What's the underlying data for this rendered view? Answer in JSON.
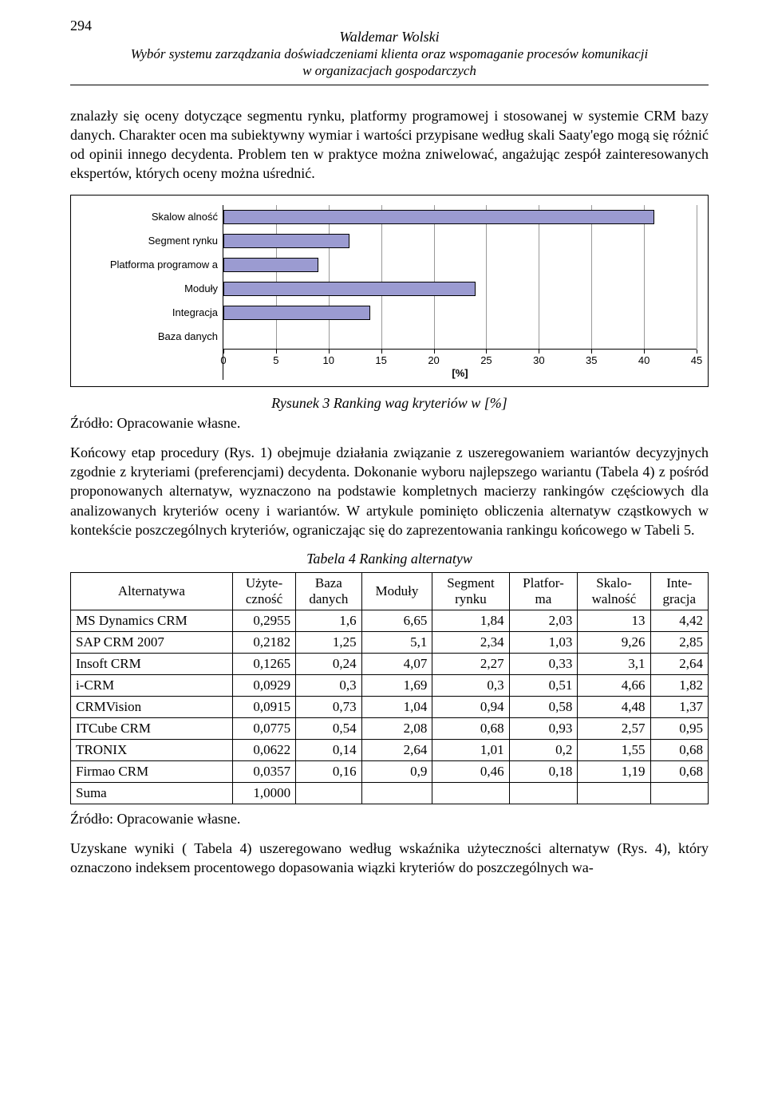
{
  "page_number": "294",
  "header": {
    "author": "Waldemar Wolski",
    "title_line1": "Wybór systemu zarządzania doświadczeniami klienta oraz wspomaganie procesów komunikacji",
    "title_line2": "w organizacjach gospodarczych"
  },
  "paragraph1": "znalazły się oceny dotyczące segmentu rynku, platformy programowej i stosowanej w systemie CRM bazy danych. Charakter ocen ma subiektywny wymiar i wartości przypisane według skali Saaty'ego mogą się różnić od opinii innego decydenta. Problem ten w praktyce można zniwelować, angażując zespół zainteresowanych ekspertów, których oceny można uśrednić.",
  "chart": {
    "type": "bar-horizontal",
    "categories": [
      "Skalow alność",
      "Segment rynku",
      "Platforma programow a",
      "Moduły",
      "Integracja",
      "Baza danych"
    ],
    "approx_values": [
      41,
      12,
      9,
      24,
      14,
      0
    ],
    "x_min": 0,
    "x_max": 45,
    "x_step": 5,
    "x_ticks": [
      0,
      5,
      10,
      15,
      20,
      25,
      30,
      35,
      40,
      45
    ],
    "x_unit": "[%]",
    "bar_fill": "#9b9bd1",
    "bar_border": "#000000",
    "grid_color": "#999999",
    "label_fontsize": 13,
    "label_font": "Arial"
  },
  "fig_caption": "Rysunek 3 Ranking wag kryteriów w [%]",
  "source_label": "Źródło: Opracowanie własne.",
  "paragraph2": "Końcowy etap procedury (Rys. 1) obejmuje działania związanie z uszeregowaniem wariantów decyzyjnych zgodnie z kryteriami (preferencjami) decydenta. Dokonanie wyboru najlepszego wariantu (Tabela 4) z pośród proponowanych alternatyw, wyznaczono na podstawie kompletnych macierzy rankingów częściowych dla analizowanych kryteriów oceny i wariantów. W artykule pominięto obliczenia alternatyw cząstkowych w kontekście poszczególnych kryteriów, ograniczając się do zaprezentowania rankingu końcowego w Tabeli 5.",
  "table_caption": "Tabela 4 Ranking alternatyw",
  "table": {
    "columns": [
      "Alternatywa",
      "Użyte-\nczność",
      "Baza\ndanych",
      "Moduły",
      "Segment\nrynku",
      "Platfor-\nma",
      "Skalo-\nwalność",
      "Inte-\ngracja"
    ],
    "rows": [
      [
        "MS Dynamics CRM",
        "0,2955",
        "1,6",
        "6,65",
        "1,84",
        "2,03",
        "13",
        "4,42"
      ],
      [
        "SAP CRM 2007",
        "0,2182",
        "1,25",
        "5,1",
        "2,34",
        "1,03",
        "9,26",
        "2,85"
      ],
      [
        "Insoft CRM",
        "0,1265",
        "0,24",
        "4,07",
        "2,27",
        "0,33",
        "3,1",
        "2,64"
      ],
      [
        "i-CRM",
        "0,0929",
        "0,3",
        "1,69",
        "0,3",
        "0,51",
        "4,66",
        "1,82"
      ],
      [
        "CRMVision",
        "0,0915",
        "0,73",
        "1,04",
        "0,94",
        "0,58",
        "4,48",
        "1,37"
      ],
      [
        "ITCube CRM",
        "0,0775",
        "0,54",
        "2,08",
        "0,68",
        "0,93",
        "2,57",
        "0,95"
      ],
      [
        "TRONIX",
        "0,0622",
        "0,14",
        "2,64",
        "1,01",
        "0,2",
        "1,55",
        "0,68"
      ],
      [
        "Firmao CRM",
        "0,0357",
        "0,16",
        "0,9",
        "0,46",
        "0,18",
        "1,19",
        "0,68"
      ],
      [
        "Suma",
        "1,0000",
        "",
        "",
        "",
        "",
        "",
        ""
      ]
    ]
  },
  "source_label2": "Źródło: Opracowanie własne.",
  "paragraph3": "Uzyskane wyniki ( Tabela 4) uszeregowano według wskaźnika użyteczności alternatyw (Rys. 4), który oznaczono indeksem procentowego dopasowania wiązki kryteriów do poszczególnych wa-"
}
